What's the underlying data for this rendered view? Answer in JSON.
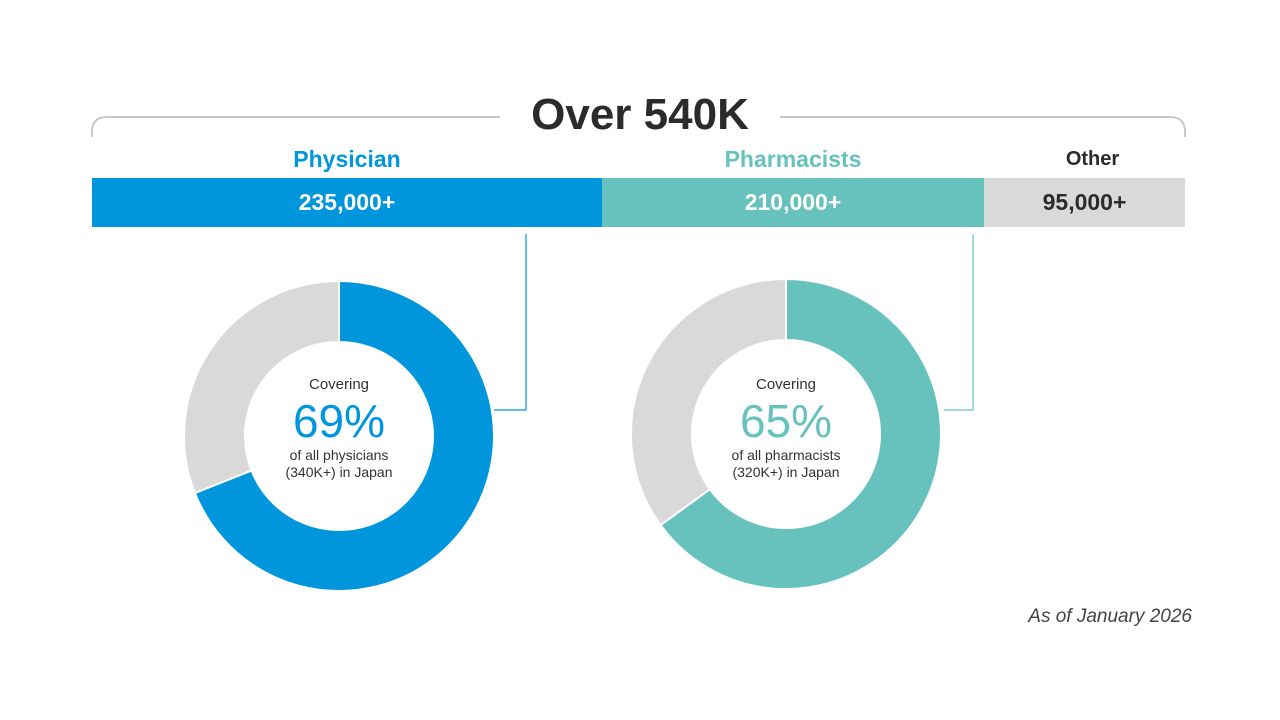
{
  "header": {
    "title": "Over 540K"
  },
  "colors": {
    "physician": "#0096DD",
    "pharmacist": "#67C2BE",
    "other": "#D9D9D9",
    "track": "#D9D9D9"
  },
  "chart_data": [
    {
      "type": "bar",
      "orientation": "stacked-horizontal",
      "title": "Over 540K",
      "categories": [
        "Physician",
        "Pharmacists",
        "Other"
      ],
      "values": [
        235000,
        210000,
        95000
      ],
      "value_labels": [
        "235,000+",
        "210,000+",
        "95,000+"
      ]
    },
    {
      "type": "pie",
      "style": "donut",
      "name": "Physician coverage",
      "caption": "Covering",
      "percent_label": "69%",
      "values": [
        69,
        31
      ],
      "description": [
        "of all physicians",
        "(340K+) in Japan"
      ]
    },
    {
      "type": "pie",
      "style": "donut",
      "name": "Pharmacist coverage",
      "caption": "Covering",
      "percent_label": "65%",
      "values": [
        65,
        35
      ],
      "description": [
        "of all pharmacists",
        "(320K+) in Japan"
      ]
    }
  ],
  "footnote": "As of January 2026"
}
